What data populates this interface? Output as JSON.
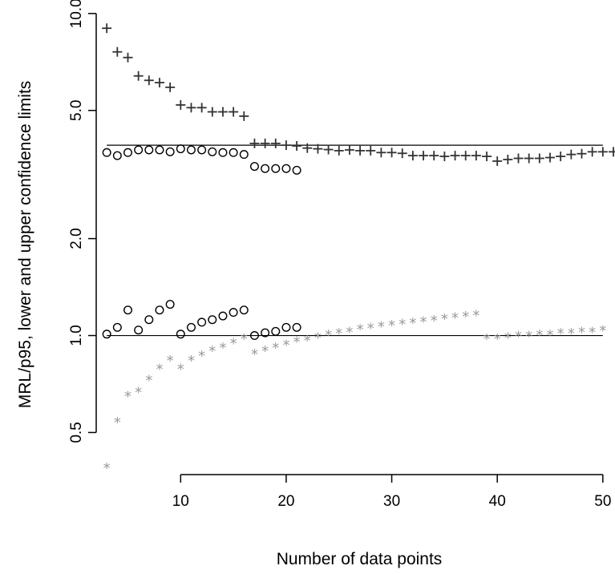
{
  "chart_data": {
    "type": "scatter",
    "title": "",
    "xlabel": "Number of data points",
    "ylabel": "MRL/p95, lower and upper confidence limits",
    "x_range": [
      2,
      51
    ],
    "y_range": [
      0.37,
      10.4
    ],
    "y_scale": "log",
    "x_ticks": [
      10,
      20,
      30,
      40,
      50
    ],
    "x_tick_labels": [
      "10",
      "20",
      "30",
      "40",
      "50"
    ],
    "y_ticks": [
      0.5,
      1.0,
      2.0,
      5.0,
      10.0
    ],
    "y_tick_labels": [
      "0.5",
      "1.0",
      "2.0",
      "5.0",
      "10.0"
    ],
    "grid": false,
    "legend": "none",
    "reference_lines": [
      {
        "y": 3.9,
        "x_from": 3,
        "x_to": 50
      },
      {
        "y": 1.0,
        "x_from": 3,
        "x_to": 50
      }
    ],
    "series": [
      {
        "marker": "plus",
        "color": "#333333",
        "points": [
          [
            3,
            9.0
          ],
          [
            4,
            7.6
          ],
          [
            5,
            7.3
          ],
          [
            6,
            6.4
          ],
          [
            7,
            6.2
          ],
          [
            8,
            6.1
          ],
          [
            9,
            5.9
          ],
          [
            10,
            5.2
          ],
          [
            11,
            5.1
          ],
          [
            12,
            5.1
          ],
          [
            13,
            4.95
          ],
          [
            14,
            4.95
          ],
          [
            15,
            4.95
          ],
          [
            16,
            4.8
          ],
          [
            17,
            3.95
          ],
          [
            18,
            3.95
          ],
          [
            19,
            3.95
          ],
          [
            20,
            3.9
          ],
          [
            21,
            3.88
          ],
          [
            22,
            3.82
          ],
          [
            23,
            3.8
          ],
          [
            24,
            3.78
          ],
          [
            25,
            3.75
          ],
          [
            26,
            3.77
          ],
          [
            27,
            3.75
          ],
          [
            28,
            3.75
          ],
          [
            29,
            3.7
          ],
          [
            30,
            3.7
          ],
          [
            31,
            3.68
          ],
          [
            32,
            3.62
          ],
          [
            33,
            3.62
          ],
          [
            34,
            3.62
          ],
          [
            35,
            3.6
          ],
          [
            36,
            3.62
          ],
          [
            37,
            3.62
          ],
          [
            38,
            3.62
          ],
          [
            39,
            3.6
          ],
          [
            40,
            3.48
          ],
          [
            41,
            3.52
          ],
          [
            42,
            3.55
          ],
          [
            43,
            3.55
          ],
          [
            44,
            3.55
          ],
          [
            45,
            3.57
          ],
          [
            46,
            3.6
          ],
          [
            47,
            3.65
          ],
          [
            48,
            3.67
          ],
          [
            49,
            3.72
          ],
          [
            50,
            3.72
          ],
          [
            51,
            3.72
          ]
        ]
      },
      {
        "marker": "circle",
        "color": "#000000",
        "points": [
          [
            3,
            3.7
          ],
          [
            4,
            3.62
          ],
          [
            5,
            3.7
          ],
          [
            6,
            3.77
          ],
          [
            7,
            3.77
          ],
          [
            8,
            3.77
          ],
          [
            9,
            3.72
          ],
          [
            10,
            3.8
          ],
          [
            11,
            3.77
          ],
          [
            12,
            3.77
          ],
          [
            13,
            3.72
          ],
          [
            14,
            3.7
          ],
          [
            15,
            3.7
          ],
          [
            16,
            3.65
          ],
          [
            17,
            3.35
          ],
          [
            18,
            3.3
          ],
          [
            19,
            3.3
          ],
          [
            20,
            3.3
          ],
          [
            21,
            3.26
          ],
          [
            3,
            1.01
          ],
          [
            4,
            1.06
          ],
          [
            5,
            1.2
          ],
          [
            6,
            1.04
          ],
          [
            7,
            1.12
          ],
          [
            8,
            1.2
          ],
          [
            9,
            1.25
          ],
          [
            10,
            1.01
          ],
          [
            11,
            1.06
          ],
          [
            12,
            1.1
          ],
          [
            13,
            1.12
          ],
          [
            14,
            1.15
          ],
          [
            15,
            1.18
          ],
          [
            16,
            1.2
          ],
          [
            17,
            1.0
          ],
          [
            18,
            1.02
          ],
          [
            19,
            1.03
          ],
          [
            20,
            1.06
          ],
          [
            21,
            1.06
          ]
        ]
      },
      {
        "marker": "star",
        "color": "#999999",
        "points": [
          [
            3,
            0.39
          ],
          [
            4,
            0.54
          ],
          [
            5,
            0.65
          ],
          [
            6,
            0.67
          ],
          [
            7,
            0.73
          ],
          [
            8,
            0.79
          ],
          [
            9,
            0.84
          ],
          [
            10,
            0.79
          ],
          [
            11,
            0.84
          ],
          [
            12,
            0.87
          ],
          [
            13,
            0.9
          ],
          [
            14,
            0.92
          ],
          [
            15,
            0.95
          ],
          [
            16,
            0.98
          ],
          [
            17,
            0.88
          ],
          [
            18,
            0.9
          ],
          [
            19,
            0.92
          ],
          [
            20,
            0.94
          ],
          [
            21,
            0.96
          ],
          [
            22,
            0.97
          ],
          [
            23,
            0.99
          ],
          [
            24,
            1.01
          ],
          [
            25,
            1.02
          ],
          [
            26,
            1.03
          ],
          [
            27,
            1.05
          ],
          [
            28,
            1.06
          ],
          [
            29,
            1.07
          ],
          [
            30,
            1.08
          ],
          [
            31,
            1.09
          ],
          [
            32,
            1.1
          ],
          [
            33,
            1.11
          ],
          [
            34,
            1.12
          ],
          [
            35,
            1.13
          ],
          [
            36,
            1.14
          ],
          [
            37,
            1.15
          ],
          [
            38,
            1.16
          ],
          [
            39,
            0.98
          ],
          [
            40,
            0.98
          ],
          [
            41,
            0.99
          ],
          [
            42,
            1.0
          ],
          [
            43,
            1.0
          ],
          [
            44,
            1.01
          ],
          [
            45,
            1.01
          ],
          [
            46,
            1.02
          ],
          [
            47,
            1.02
          ],
          [
            48,
            1.03
          ],
          [
            49,
            1.03
          ],
          [
            50,
            1.04
          ]
        ]
      }
    ]
  }
}
